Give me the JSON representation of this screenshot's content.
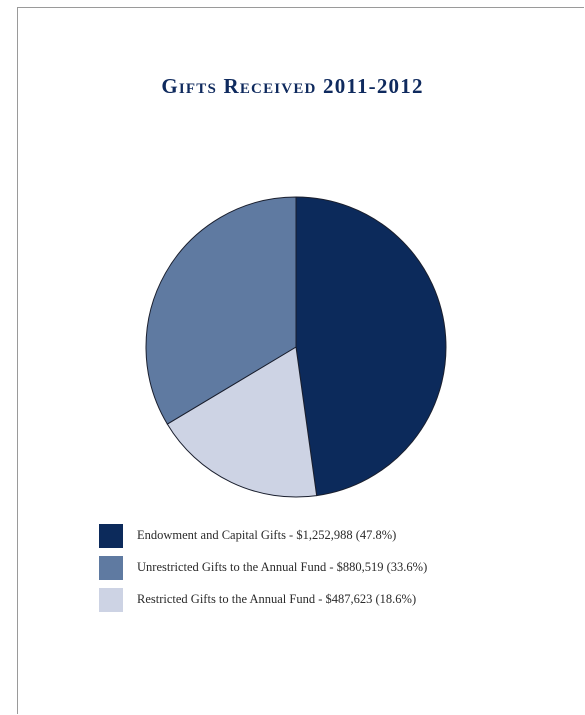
{
  "chart_data": {
    "type": "pie",
    "title": "Gifts Received 2011-2012",
    "slices": [
      {
        "label": "Endowment and Capital Gifts - $1,252,988 (47.8%)",
        "value": 1252988,
        "percent": 47.8,
        "color": "#0c2a5b"
      },
      {
        "label": "Restricted Gifts to the Annual Fund - $487,623 (18.6%)",
        "value": 487623,
        "percent": 18.6,
        "color": "#cdd3e4"
      },
      {
        "label": "Unrestricted Gifts to the Annual Fund - $880,519 (33.6%)",
        "value": 880519,
        "percent": 33.6,
        "color": "#5f7aa1"
      }
    ],
    "legend": [
      {
        "label": "Endowment and Capital Gifts - $1,252,988 (47.8%)",
        "color": "#0c2a5b"
      },
      {
        "label": "Unrestricted Gifts to the Annual Fund - $880,519 (33.6%)",
        "color": "#5f7aa1"
      },
      {
        "label": "Restricted Gifts to the Annual Fund - $487,623 (18.6%)",
        "color": "#cdd3e4"
      }
    ],
    "legend_position": "bottom-left"
  }
}
